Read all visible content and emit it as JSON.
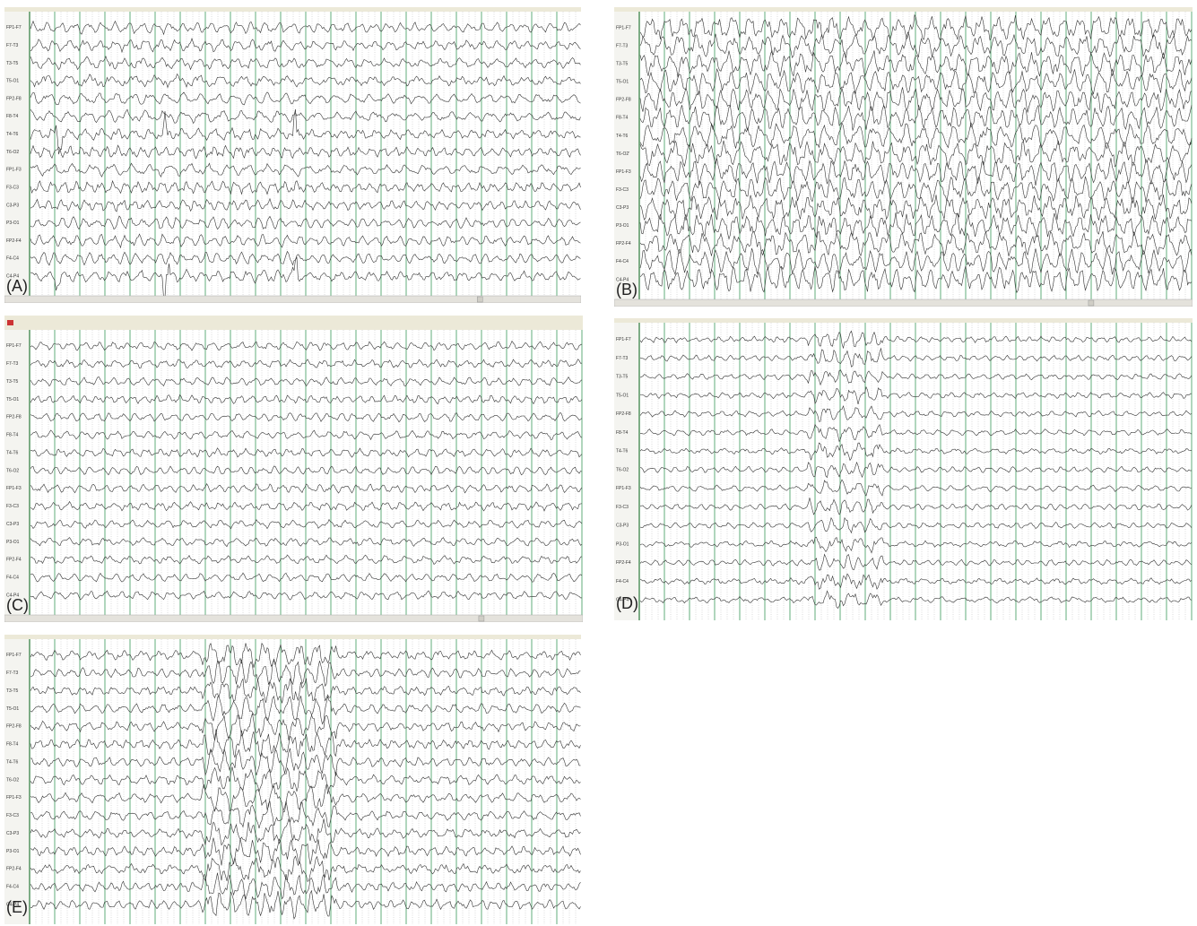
{
  "panels": [
    {
      "label": "(A)",
      "channels": [
        "FP1-F7",
        "F7-T3",
        "T3-T5",
        "T5-O1",
        "FP2-F8",
        "F8-T4",
        "T4-T6",
        "T6-O2",
        "FP1-F3",
        "F3-C3",
        "C3-P3",
        "P3-O1",
        "FP2-F4",
        "F4-C4",
        "C4-P4"
      ]
    },
    {
      "label": "(B)",
      "channels": [
        "FP1-F7",
        "F7-T3",
        "T3-T5",
        "T5-O1",
        "FP2-F8",
        "F8-T4",
        "T4-T6",
        "T6-O2'",
        "FP1-F3",
        "F3-C3",
        "C3-P3",
        "P3-O1",
        "FP2-F4",
        "F4-C4",
        "C4-P4"
      ]
    },
    {
      "label": "(C)",
      "channels": [
        "FP1-F7",
        "F7-T3",
        "T3-T5",
        "T5-O1",
        "FP2-F8",
        "F8-T4",
        "T4-T6",
        "T6-O2",
        "FP1-F3",
        "F3-C3",
        "C3-P3",
        "P3-O1",
        "FP2-F4",
        "F4-C4",
        "C4-P4"
      ]
    },
    {
      "label": "(D)",
      "channels": [
        "FP1-F7",
        "F7-T3",
        "T3-T5",
        "T5-O1",
        "FP2-F8",
        "F8-T4",
        "T4-T6",
        "T6-O2",
        "FP1-F3",
        "F3-C3",
        "C3-P3",
        "P3-O1",
        "FP2-F4",
        "F4-C4",
        "C4-P4"
      ]
    },
    {
      "label": "(E)",
      "channels": [
        "FP1-F7",
        "F7-T3",
        "T3-T5",
        "T5-O1",
        "FP2-F8",
        "F8-T4",
        "T4-T6",
        "T6-O2",
        "FP1-F3",
        "F3-C3",
        "C3-P3",
        "P3-O1",
        "FP2-F4",
        "F4-C4",
        "C4-P4"
      ]
    }
  ]
}
